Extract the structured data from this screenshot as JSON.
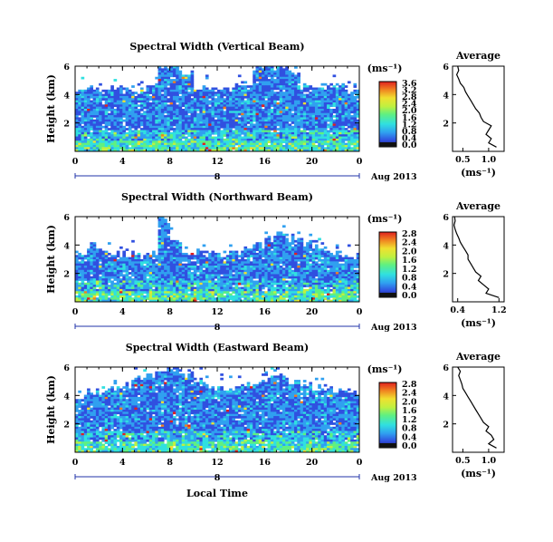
{
  "figure": {
    "date_label": "Aug 2013",
    "day_label": "8",
    "xlabel": "Local Time",
    "x_ticks": [
      "0",
      "4",
      "8",
      "12",
      "16",
      "20",
      "0"
    ],
    "y_ticks": [
      "6",
      "4",
      "2"
    ]
  },
  "chart_data": [
    {
      "type": "heatmap",
      "title": "Spectral Width (Vertical Beam)",
      "ylabel": "Height (km)",
      "units_label": "(ms⁻¹)",
      "xlim": [
        0,
        24
      ],
      "ylim": [
        0,
        6
      ],
      "x_ticks": [
        0,
        4,
        8,
        12,
        16,
        20,
        24
      ],
      "y_ticks": [
        2,
        4,
        6
      ],
      "colorbar_range": [
        0.0,
        3.6
      ],
      "colorbar_ticks": [
        "3.6",
        "3.2",
        "2.8",
        "2.4",
        "2.0",
        "1.6",
        "1.2",
        "0.8",
        "0.4",
        "0.0"
      ],
      "echo_top_km": [
        4.5,
        4.5,
        4.4,
        4.4,
        4.3,
        4.3,
        4.8,
        6.0,
        6.0,
        5.5,
        4.5,
        4.5,
        4.4,
        4.4,
        4.5,
        5.8,
        6.0,
        6.0,
        5.6,
        4.8,
        4.7,
        4.5,
        4.5,
        4.4
      ],
      "average": {
        "title": "Average",
        "xlabel": "(ms⁻¹)",
        "x_ticks": [
          "0.5",
          "1.0"
        ],
        "y_ticks": [
          "2",
          "4",
          "6"
        ],
        "xlim": [
          0.3,
          1.3
        ],
        "ylim": [
          0,
          6
        ],
        "height_km": [
          0.3,
          0.6,
          0.9,
          1.2,
          1.5,
          1.8,
          2.1,
          2.4,
          2.7,
          3.0,
          3.3,
          3.6,
          3.9,
          4.2,
          4.5,
          4.8,
          5.1,
          5.4,
          5.7,
          6.0
        ],
        "values": [
          1.15,
          1.0,
          1.05,
          0.95,
          1.0,
          1.05,
          0.9,
          0.85,
          0.82,
          0.75,
          0.7,
          0.65,
          0.6,
          0.55,
          0.52,
          0.45,
          0.42,
          0.38,
          0.42,
          0.4
        ]
      }
    },
    {
      "type": "heatmap",
      "title": "Spectral Width (Northward Beam)",
      "ylabel": "Height (km)",
      "units_label": "(ms⁻¹)",
      "xlim": [
        0,
        24
      ],
      "ylim": [
        0,
        6
      ],
      "x_ticks": [
        0,
        4,
        8,
        12,
        16,
        20,
        24
      ],
      "y_ticks": [
        2,
        4,
        6
      ],
      "colorbar_range": [
        0.0,
        3.6
      ],
      "colorbar_ticks": [
        "2.8",
        "2.4",
        "2.0",
        "1.6",
        "1.2",
        "0.8",
        "0.4",
        "0.0"
      ],
      "echo_top_km": [
        3.5,
        3.8,
        3.6,
        3.4,
        3.3,
        3.2,
        3.5,
        5.8,
        4.2,
        3.6,
        3.5,
        3.4,
        3.3,
        3.5,
        3.8,
        4.0,
        4.5,
        5.0,
        4.5,
        4.2,
        3.8,
        3.5,
        3.4,
        3.3
      ],
      "average": {
        "title": "Average",
        "xlabel": "(ms⁻¹)",
        "x_ticks": [
          "0.4",
          "1.2"
        ],
        "y_ticks": [
          "2",
          "4",
          "6"
        ],
        "xlim": [
          0.3,
          1.3
        ],
        "ylim": [
          0,
          6
        ],
        "height_km": [
          0.3,
          0.6,
          0.9,
          1.2,
          1.5,
          1.8,
          2.1,
          2.4,
          2.7,
          3.0,
          3.3,
          3.6,
          3.9,
          4.2,
          4.5,
          4.8,
          5.1,
          5.4,
          5.7,
          6.0
        ],
        "values": [
          1.2,
          0.95,
          1.0,
          0.9,
          0.8,
          0.85,
          0.75,
          0.7,
          0.65,
          0.6,
          0.6,
          0.55,
          0.5,
          0.45,
          0.42,
          0.38,
          0.35,
          0.33,
          0.35,
          0.34
        ]
      }
    },
    {
      "type": "heatmap",
      "title": "Spectral Width (Eastward Beam)",
      "ylabel": "Height (km)",
      "units_label": "(ms⁻¹)",
      "xlim": [
        0,
        24
      ],
      "ylim": [
        0,
        6
      ],
      "x_ticks": [
        0,
        4,
        8,
        12,
        16,
        20,
        24
      ],
      "y_ticks": [
        2,
        4,
        6
      ],
      "colorbar_range": [
        0.0,
        3.6
      ],
      "colorbar_ticks": [
        "2.8",
        "2.4",
        "2.0",
        "1.6",
        "1.2",
        "0.8",
        "0.4",
        "0.0"
      ],
      "echo_top_km": [
        4.0,
        4.3,
        4.2,
        4.5,
        4.8,
        5.3,
        5.5,
        5.8,
        5.9,
        5.5,
        5.0,
        4.6,
        4.5,
        4.5,
        4.7,
        5.0,
        5.2,
        5.5,
        5.0,
        4.7,
        4.5,
        4.4,
        4.3,
        4.2
      ],
      "average": {
        "title": "Average",
        "xlabel": "(ms⁻¹)",
        "x_ticks": [
          "0.5",
          "1.0"
        ],
        "y_ticks": [
          "2",
          "4",
          "6"
        ],
        "xlim": [
          0.3,
          1.3
        ],
        "ylim": [
          0,
          6
        ],
        "height_km": [
          0.3,
          0.6,
          0.9,
          1.2,
          1.5,
          1.8,
          2.1,
          2.4,
          2.7,
          3.0,
          3.3,
          3.6,
          3.9,
          4.2,
          4.5,
          4.8,
          5.1,
          5.4,
          5.7,
          6.0
        ],
        "values": [
          1.15,
          1.0,
          1.1,
          1.05,
          0.95,
          1.0,
          0.9,
          0.85,
          0.8,
          0.75,
          0.7,
          0.65,
          0.6,
          0.55,
          0.5,
          0.48,
          0.45,
          0.42,
          0.45,
          0.4
        ]
      }
    }
  ]
}
